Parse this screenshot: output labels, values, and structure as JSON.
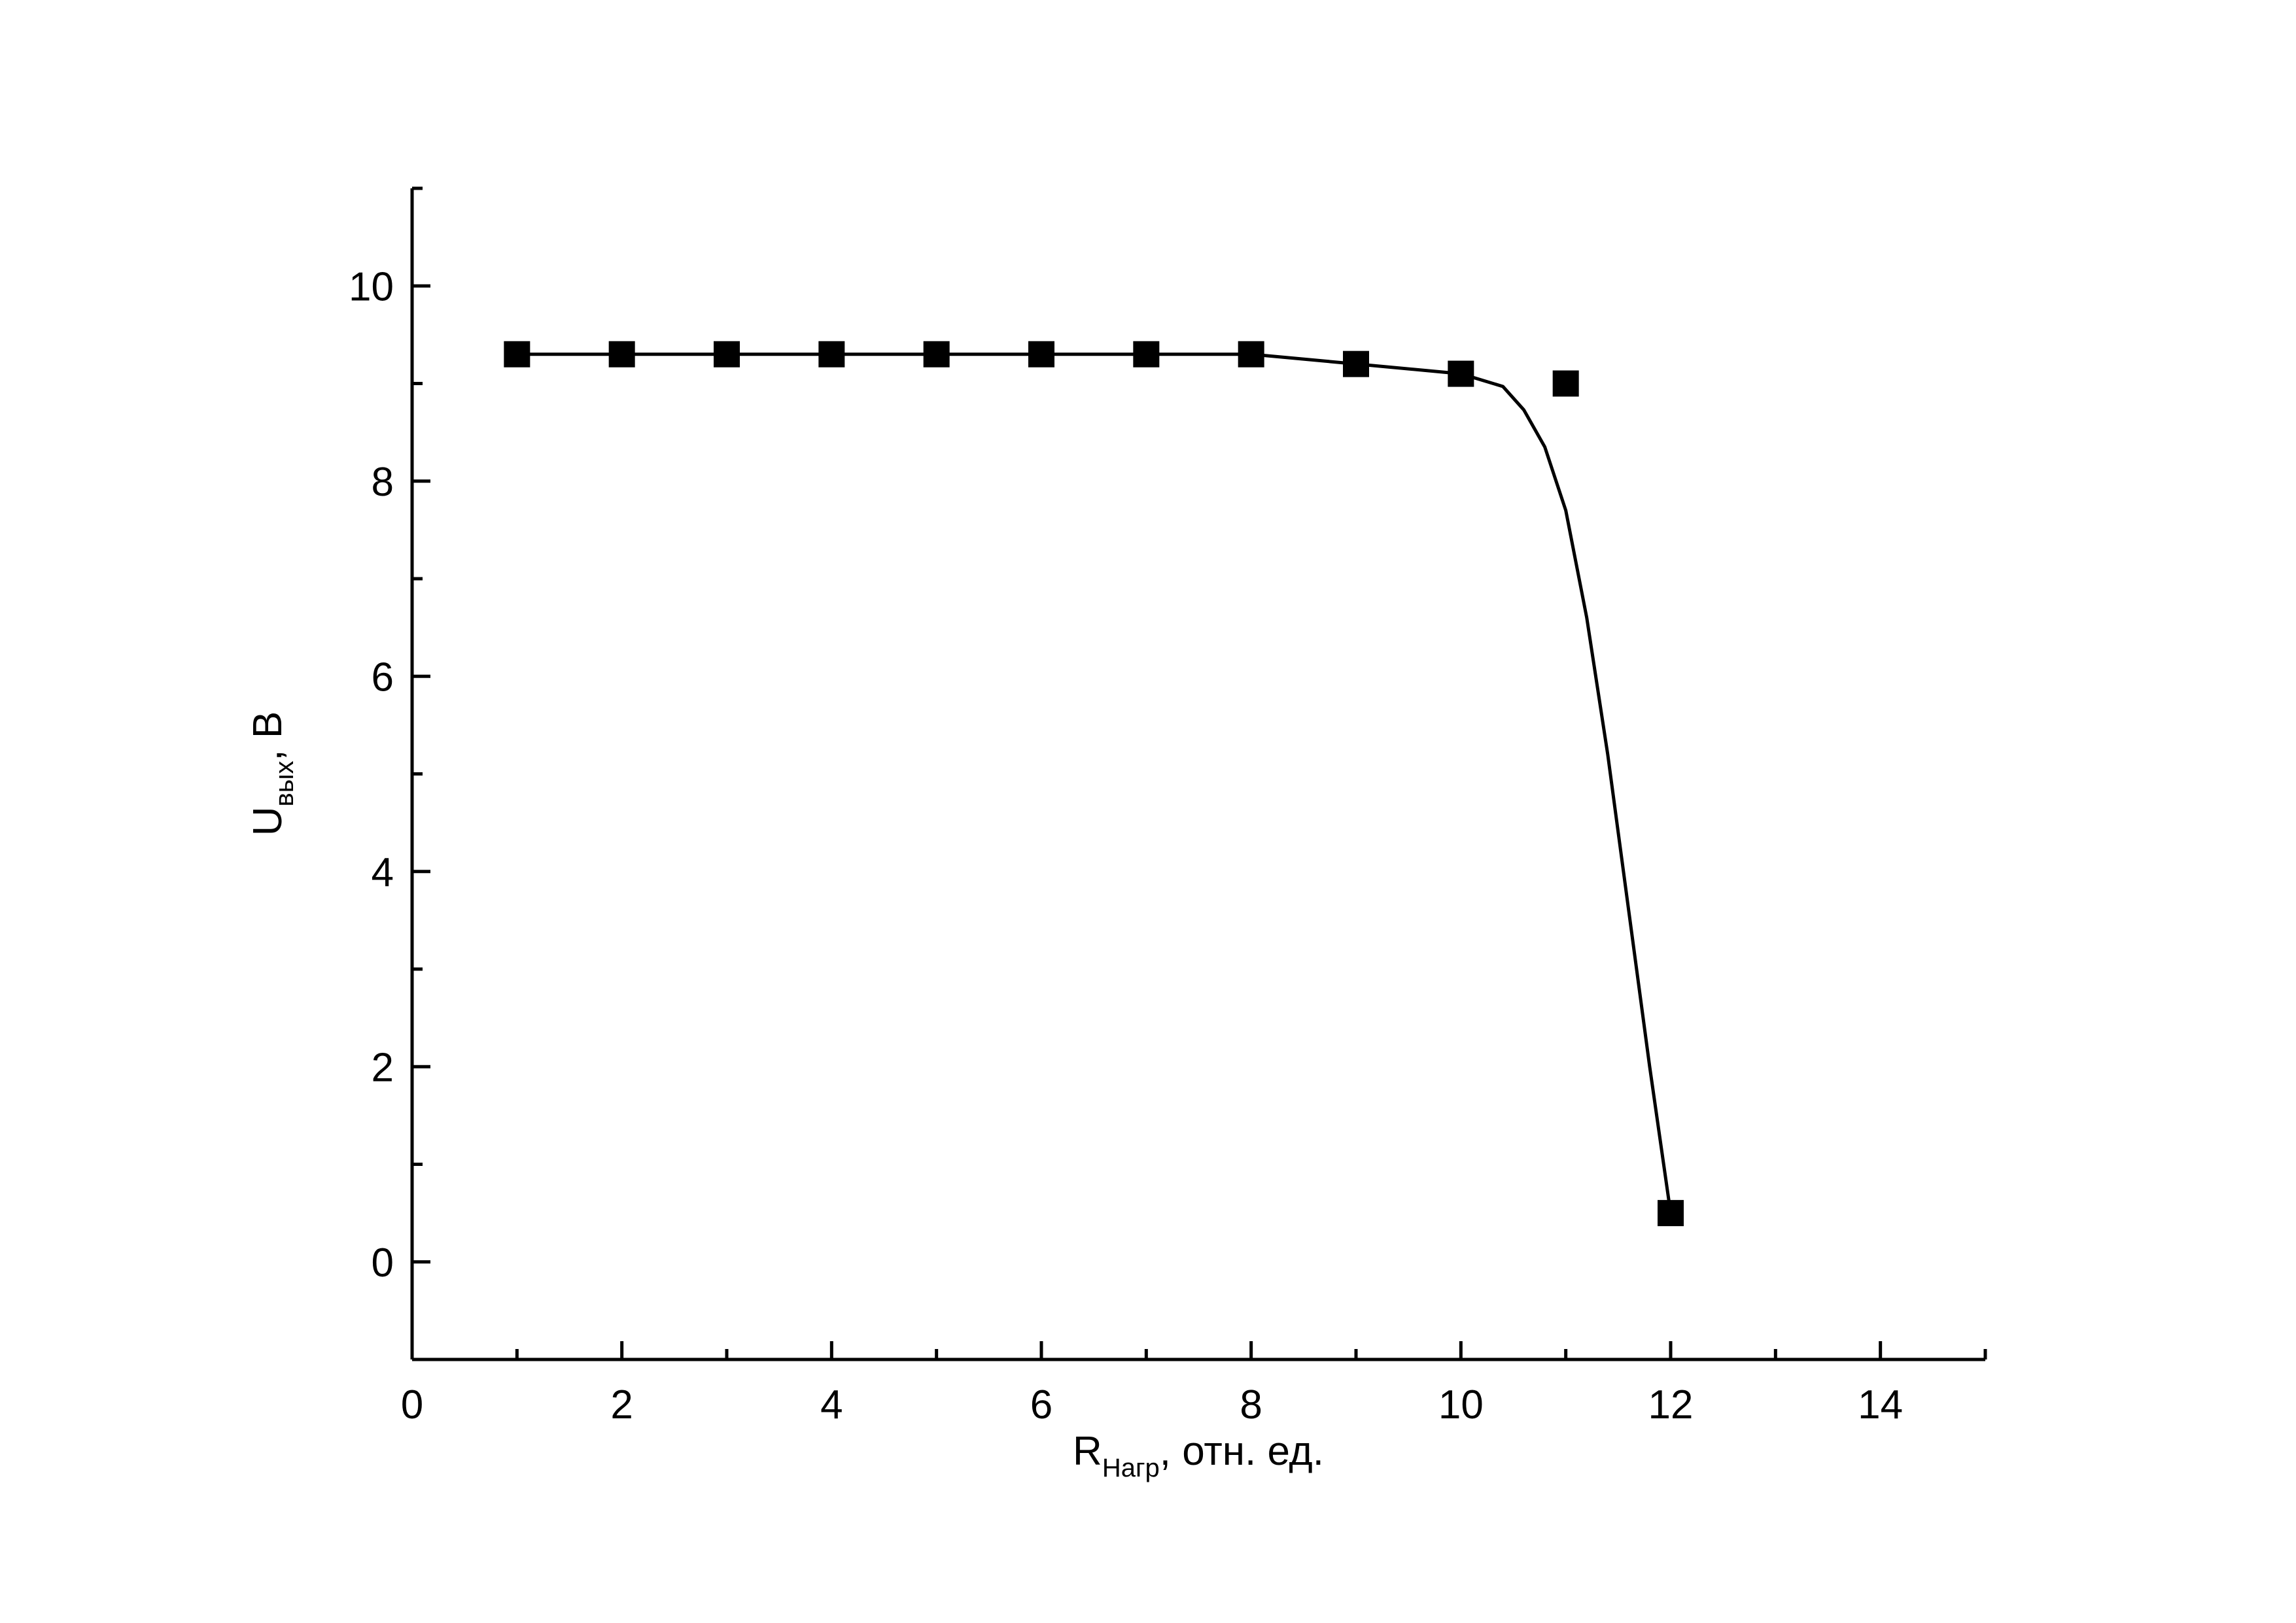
{
  "chart_data": {
    "type": "scatter",
    "x_label": {
      "main": "R",
      "sub": "Нагр",
      "rest": ", отн. ед."
    },
    "y_label": {
      "main": "U",
      "sub": "вых",
      "rest": ", В"
    },
    "xlim": [
      0,
      15
    ],
    "ylim": [
      -1,
      11
    ],
    "xticks": [
      0,
      2,
      4,
      6,
      8,
      10,
      12,
      14
    ],
    "yticks": [
      0,
      2,
      4,
      6,
      8,
      10
    ],
    "xminorticks": [
      1,
      3,
      5,
      7,
      9,
      11,
      13,
      15
    ],
    "yminorticks": [
      -1,
      1,
      3,
      5,
      7,
      9,
      11
    ],
    "series": [
      {
        "mode": "markers",
        "marker": "square",
        "color": "#000000",
        "x": [
          1,
          2,
          3,
          4,
          5,
          6,
          7,
          8,
          9,
          10,
          11,
          12
        ],
        "values": [
          9.3,
          9.3,
          9.3,
          9.3,
          9.3,
          9.3,
          9.3,
          9.3,
          9.2,
          9.1,
          9.0,
          0.5
        ]
      },
      {
        "mode": "line",
        "color": "#000000",
        "x": [
          1,
          2,
          3,
          4,
          5,
          6,
          7,
          8,
          9,
          10,
          10.4,
          10.6,
          10.8,
          11,
          11.2,
          11.4,
          11.6,
          11.8,
          12
        ],
        "values": [
          9.3,
          9.3,
          9.3,
          9.3,
          9.3,
          9.3,
          9.3,
          9.3,
          9.2,
          9.1,
          8.97,
          8.73,
          8.35,
          7.7,
          6.6,
          5.2,
          3.6,
          2.0,
          0.5
        ]
      }
    ]
  }
}
